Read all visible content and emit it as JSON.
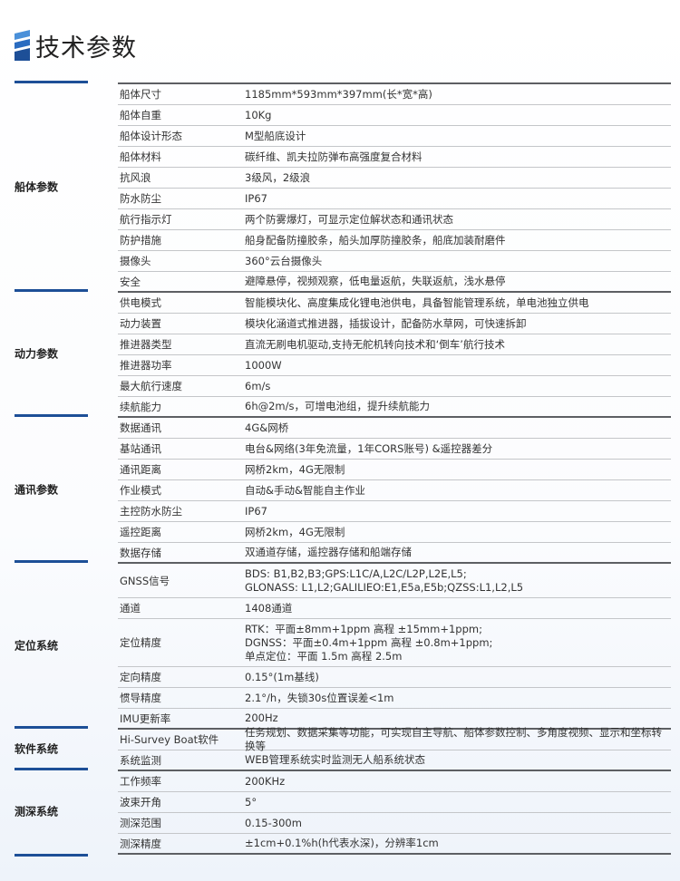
{
  "header": {
    "title": "技术参数",
    "icon": "stripe-logo-icon",
    "accent": "#1d4f97"
  },
  "groups": [
    {
      "label": "船体参数",
      "rows": [
        {
          "key": "船体尺寸",
          "value": "1185mm*593mm*397mm(长*宽*高)"
        },
        {
          "key": "船体自重",
          "value": "10Kg"
        },
        {
          "key": "船体设计形态",
          "value": "M型船底设计"
        },
        {
          "key": "船体材料",
          "value": "碳纤维、凯夫拉防弹布高强度复合材料"
        },
        {
          "key": "抗风浪",
          "value": "3级风，2级浪"
        },
        {
          "key": "防水防尘",
          "value": "IP67"
        },
        {
          "key": "航行指示灯",
          "value": "两个防雾爆灯，可显示定位解状态和通讯状态"
        },
        {
          "key": "防护措施",
          "value": "船身配备防撞胶条，船头加厚防撞胶条，船底加装耐磨件"
        },
        {
          "key": "摄像头",
          "value": "360°云台摄像头"
        },
        {
          "key": "安全",
          "value": "避障悬停，视频观察，低电量返航，失联返航，浅水悬停"
        }
      ]
    },
    {
      "label": "动力参数",
      "rows": [
        {
          "key": "供电模式",
          "value": "智能模块化、高度集成化锂电池供电，具备智能管理系统，单电池独立供电"
        },
        {
          "key": "动力装置",
          "value": "模块化涵道式推进器，插拔设计，配备防水草网，可快速拆卸"
        },
        {
          "key": "推进器类型",
          "value": "直流无刷电机驱动,支持无舵机转向技术和‘倒车’航行技术"
        },
        {
          "key": "推进器功率",
          "value": "1000W"
        },
        {
          "key": "最大航行速度",
          "value": "6m/s"
        },
        {
          "key": "续航能力",
          "value": "6h@2m/s，可增电池组，提升续航能力"
        }
      ]
    },
    {
      "label": "通讯参数",
      "rows": [
        {
          "key": "数据通讯",
          "value": "4G&网桥"
        },
        {
          "key": "基站通讯",
          "value": "电台&网络(3年免流量，1年CORS账号) &遥控器差分"
        },
        {
          "key": "通讯距离",
          "value": "网桥2km，4G无限制"
        },
        {
          "key": "作业模式",
          "value": "自动&手动&智能自主作业"
        },
        {
          "key": "主控防水防尘",
          "value": "IP67"
        },
        {
          "key": "遥控距离",
          "value": "网桥2km，4G无限制"
        },
        {
          "key": "数据存储",
          "value": "双通道存储，遥控器存储和船端存储"
        }
      ]
    },
    {
      "label": "定位系统",
      "rows": [
        {
          "key": "GNSS信号",
          "value": "BDS: B1,B2,B3;GPS:L1C/A,L2C/L2P,L2E,L5;\nGLONASS: L1,L2;GALILIEO:E1,E5a,E5b;QZSS:L1,L2,L5"
        },
        {
          "key": "通道",
          "value": "1408通道"
        },
        {
          "key": "定位精度",
          "value": "RTK：平面±8mm+1ppm 高程 ±15mm+1ppm;\nDGNSS：平面±0.4m+1ppm 高程 ±0.8m+1ppm;\n单点定位：平面 1.5m 高程 2.5m"
        },
        {
          "key": "定向精度",
          "value": "0.15°(1m基线)"
        },
        {
          "key": "惯导精度",
          "value": "2.1°/h，失锁30s位置误差<1m"
        },
        {
          "key": "IMU更新率",
          "value": "200Hz"
        }
      ]
    },
    {
      "label": "软件系统",
      "rows": [
        {
          "key": "Hi-Survey Boat软件",
          "value": "任务规划、数据采集等功能，可实现自主导航、船体参数控制、多角度视频、显示和坐标转换等"
        },
        {
          "key": "系统监测",
          "value": "WEB管理系统实时监测无人船系统状态"
        }
      ]
    },
    {
      "label": "测深系统",
      "rows": [
        {
          "key": "工作频率",
          "value": "200KHz"
        },
        {
          "key": "波束开角",
          "value": "5°"
        },
        {
          "key": "测深范围",
          "value": "0.15-300m"
        },
        {
          "key": "测深精度",
          "value": "±1cm+0.1%h(h代表水深)，分辨率1cm"
        }
      ]
    }
  ]
}
